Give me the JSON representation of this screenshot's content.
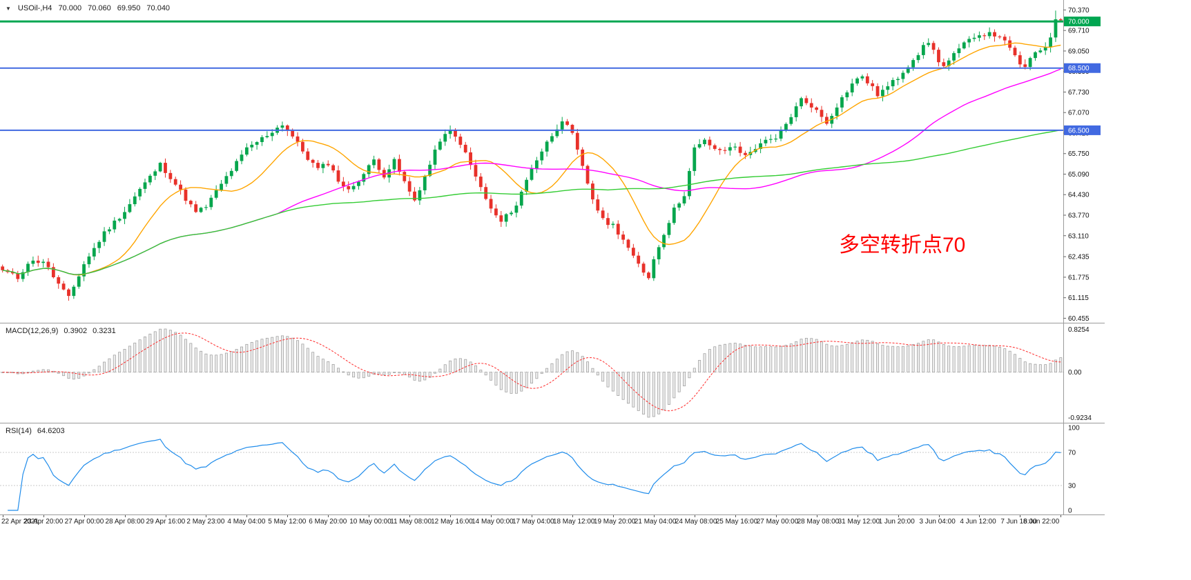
{
  "window": {
    "background": "#ffffff"
  },
  "header": {
    "dropdown_icon": "▼",
    "symbol_timeframe": "USOil-,H4",
    "open": "70.000",
    "high": "70.060",
    "low": "69.950",
    "close": "70.040"
  },
  "annotation": {
    "text": "多空转折点70",
    "color": "#ff0000"
  },
  "colors": {
    "bull": "#07a64d",
    "bear": "#e8312a",
    "level_green": "#00a651",
    "level_blue": "#4169e1",
    "ma_fast": "#ffa500",
    "ma_mid": "#ff00ff",
    "ma_slow": "#33cc33",
    "macd_histogram_fill": "#ededed",
    "macd_histogram_stroke": "#9e9e9e",
    "macd_signal": "#ff2a2a",
    "rsi_line": "#1f8ceb",
    "indicator_level": "#c8c8c8",
    "separator": "#9a9a9a",
    "axis_text": "#111111"
  },
  "chart_data": [
    {
      "type": "candlestick",
      "title": "USOil-,H4",
      "symbol": "USOil-",
      "timeframe": "H4",
      "latest_quote": {
        "open": 70.0,
        "high": 70.06,
        "low": 69.95,
        "close": 70.04
      },
      "bar_count": 209,
      "bars_per_x_label": 8,
      "y_range": [
        60.31,
        70.69
      ],
      "y_ticks": [
        "70.370",
        "69.710",
        "69.050",
        "68.390",
        "67.730",
        "67.070",
        "66.410",
        "65.750",
        "65.090",
        "64.430",
        "63.770",
        "63.110",
        "62.435",
        "61.775",
        "61.115",
        "60.455"
      ],
      "x_labels": [
        "22 Apr 2021",
        "23 Apr 20:00",
        "27 Apr 00:00",
        "28 Apr 08:00",
        "29 Apr 16:00",
        "2 May 23:00",
        "4 May 04:00",
        "5 May 12:00",
        "6 May 20:00",
        "10 May 00:00",
        "11 May 08:00",
        "12 May 16:00",
        "14 May 00:00",
        "17 May 04:00",
        "18 May 12:00",
        "19 May 20:00",
        "21 May 04:00",
        "24 May 08:00",
        "25 May 16:00",
        "27 May 00:00",
        "28 May 08:00",
        "31 May 12:00",
        "1 Jun 20:00",
        "3 Jun 04:00",
        "4 Jun 12:00",
        "7 Jun 16:00",
        "8 Jun 22:00"
      ],
      "levels": [
        {
          "price": 70.0,
          "label": "70.000",
          "color_key": "level_green",
          "width": 3
        },
        {
          "price": 68.5,
          "label": "68.500",
          "color_key": "level_blue",
          "width": 2
        },
        {
          "price": 66.5,
          "label": "66.500",
          "color_key": "level_blue",
          "width": 2
        }
      ],
      "moving_averages": [
        {
          "name": "fast",
          "period": 14,
          "color_key": "ma_fast"
        },
        {
          "name": "medium",
          "period": 55,
          "color_key": "ma_mid"
        },
        {
          "name": "slow",
          "period": 120,
          "color_key": "ma_slow"
        }
      ],
      "price_path_anchors": [
        [
          0,
          62.0
        ],
        [
          3,
          61.75
        ],
        [
          5,
          62.25
        ],
        [
          8,
          62.3
        ],
        [
          11,
          61.55
        ],
        [
          13,
          61.1
        ],
        [
          16,
          62.2
        ],
        [
          20,
          63.2
        ],
        [
          24,
          63.9
        ],
        [
          27,
          64.6
        ],
        [
          31,
          65.4
        ],
        [
          33,
          65.0
        ],
        [
          36,
          64.3
        ],
        [
          38,
          63.85
        ],
        [
          40,
          64.05
        ],
        [
          44,
          65.0
        ],
        [
          48,
          65.9
        ],
        [
          52,
          66.35
        ],
        [
          55,
          66.7
        ],
        [
          57,
          66.3
        ],
        [
          60,
          65.6
        ],
        [
          62,
          65.25
        ],
        [
          64,
          65.45
        ],
        [
          66,
          64.9
        ],
        [
          68,
          64.55
        ],
        [
          71,
          65.1
        ],
        [
          73,
          65.55
        ],
        [
          75,
          65.05
        ],
        [
          77,
          65.5
        ],
        [
          80,
          64.5
        ],
        [
          81,
          64.25
        ],
        [
          84,
          65.4
        ],
        [
          86,
          66.2
        ],
        [
          88,
          66.45
        ],
        [
          90,
          66.1
        ],
        [
          93,
          65.0
        ],
        [
          96,
          63.95
        ],
        [
          98,
          63.55
        ],
        [
          101,
          64.1
        ],
        [
          104,
          65.3
        ],
        [
          107,
          66.1
        ],
        [
          110,
          66.85
        ],
        [
          112,
          66.35
        ],
        [
          114,
          65.3
        ],
        [
          116,
          64.3
        ],
        [
          118,
          63.6
        ],
        [
          120,
          63.45
        ],
        [
          122,
          63.0
        ],
        [
          124,
          62.4
        ],
        [
          126,
          61.95
        ],
        [
          127,
          61.8
        ],
        [
          128,
          62.35
        ],
        [
          130,
          63.2
        ],
        [
          132,
          63.95
        ],
        [
          134,
          64.45
        ],
        [
          136,
          65.9
        ],
        [
          138,
          66.15
        ],
        [
          141,
          65.8
        ],
        [
          144,
          66.0
        ],
        [
          146,
          65.65
        ],
        [
          149,
          66.1
        ],
        [
          152,
          66.2
        ],
        [
          154,
          66.7
        ],
        [
          157,
          67.5
        ],
        [
          159,
          67.3
        ],
        [
          162,
          66.75
        ],
        [
          164,
          67.3
        ],
        [
          167,
          68.0
        ],
        [
          169,
          68.25
        ],
        [
          172,
          67.65
        ],
        [
          174,
          67.9
        ],
        [
          176,
          68.2
        ],
        [
          179,
          68.8
        ],
        [
          182,
          69.35
        ],
        [
          184,
          68.75
        ],
        [
          185,
          68.55
        ],
        [
          188,
          69.1
        ],
        [
          191,
          69.55
        ],
        [
          193,
          69.6
        ],
        [
          196,
          69.55
        ],
        [
          198,
          69.1
        ],
        [
          200,
          68.65
        ],
        [
          201,
          68.5
        ],
        [
          203,
          69.0
        ],
        [
          205,
          69.2
        ],
        [
          206,
          69.55
        ],
        [
          207,
          70.0
        ],
        [
          208,
          70.04
        ]
      ],
      "wick_extremes": [
        {
          "bar": 13,
          "low": 61.02
        },
        {
          "bar": 55,
          "high": 66.78
        },
        {
          "bar": 110,
          "high": 66.93
        },
        {
          "bar": 127,
          "low": 61.69
        },
        {
          "bar": 207,
          "high": 70.35
        }
      ]
    },
    {
      "type": "macd",
      "label": "MACD(12,26,9)",
      "params": {
        "fast": 12,
        "slow": 26,
        "signal": 9
      },
      "display": {
        "macd": "0.3902",
        "signal": "0.3231"
      },
      "y_ticks": [
        "0.8254",
        "0.00",
        "-0.9234"
      ],
      "derived_from": "chart_data.0 closes"
    },
    {
      "type": "rsi",
      "label": "RSI(14)",
      "period": 14,
      "display": {
        "value": "64.6203"
      },
      "levels": [
        70,
        30
      ],
      "y_ticks": [
        "100",
        "70",
        "30",
        "0"
      ],
      "derived_from": "chart_data.0 closes"
    }
  ]
}
